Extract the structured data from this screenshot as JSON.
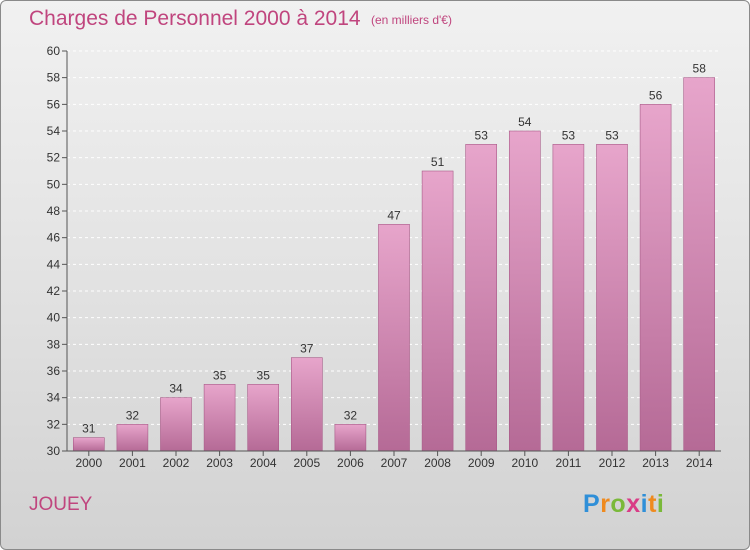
{
  "header": {
    "title": "Charges de Personnel 2000 à 2014",
    "subtitle": "(en milliers d'€)"
  },
  "footer": {
    "commune": "JOUEY",
    "brand": {
      "letters": [
        "P",
        "r",
        "o",
        "x",
        "i",
        "t",
        "i"
      ],
      "colors": [
        "#2f8fd8",
        "#ef8a1e",
        "#7ab93a",
        "#d93c86",
        "#2f8fd8",
        "#ef8a1e",
        "#7ab93a"
      ]
    }
  },
  "colors": {
    "bar_top": "#e7a5cb",
    "bar_bottom": "#b56a96",
    "bar_edge": "#a85a88",
    "text_accent": "#c0457e"
  },
  "chart_data": {
    "type": "bar",
    "categories": [
      "2000",
      "2001",
      "2002",
      "2003",
      "2004",
      "2005",
      "2006",
      "2007",
      "2008",
      "2009",
      "2010",
      "2011",
      "2012",
      "2013",
      "2014"
    ],
    "values": [
      31,
      32,
      34,
      35,
      35,
      37,
      32,
      47,
      51,
      53,
      54,
      53,
      53,
      56,
      58
    ],
    "ylim": [
      30,
      60
    ],
    "yticks": [
      30,
      32,
      34,
      36,
      38,
      40,
      42,
      44,
      46,
      48,
      50,
      52,
      54,
      56,
      58,
      60
    ],
    "grid": true,
    "data_labels": true
  }
}
